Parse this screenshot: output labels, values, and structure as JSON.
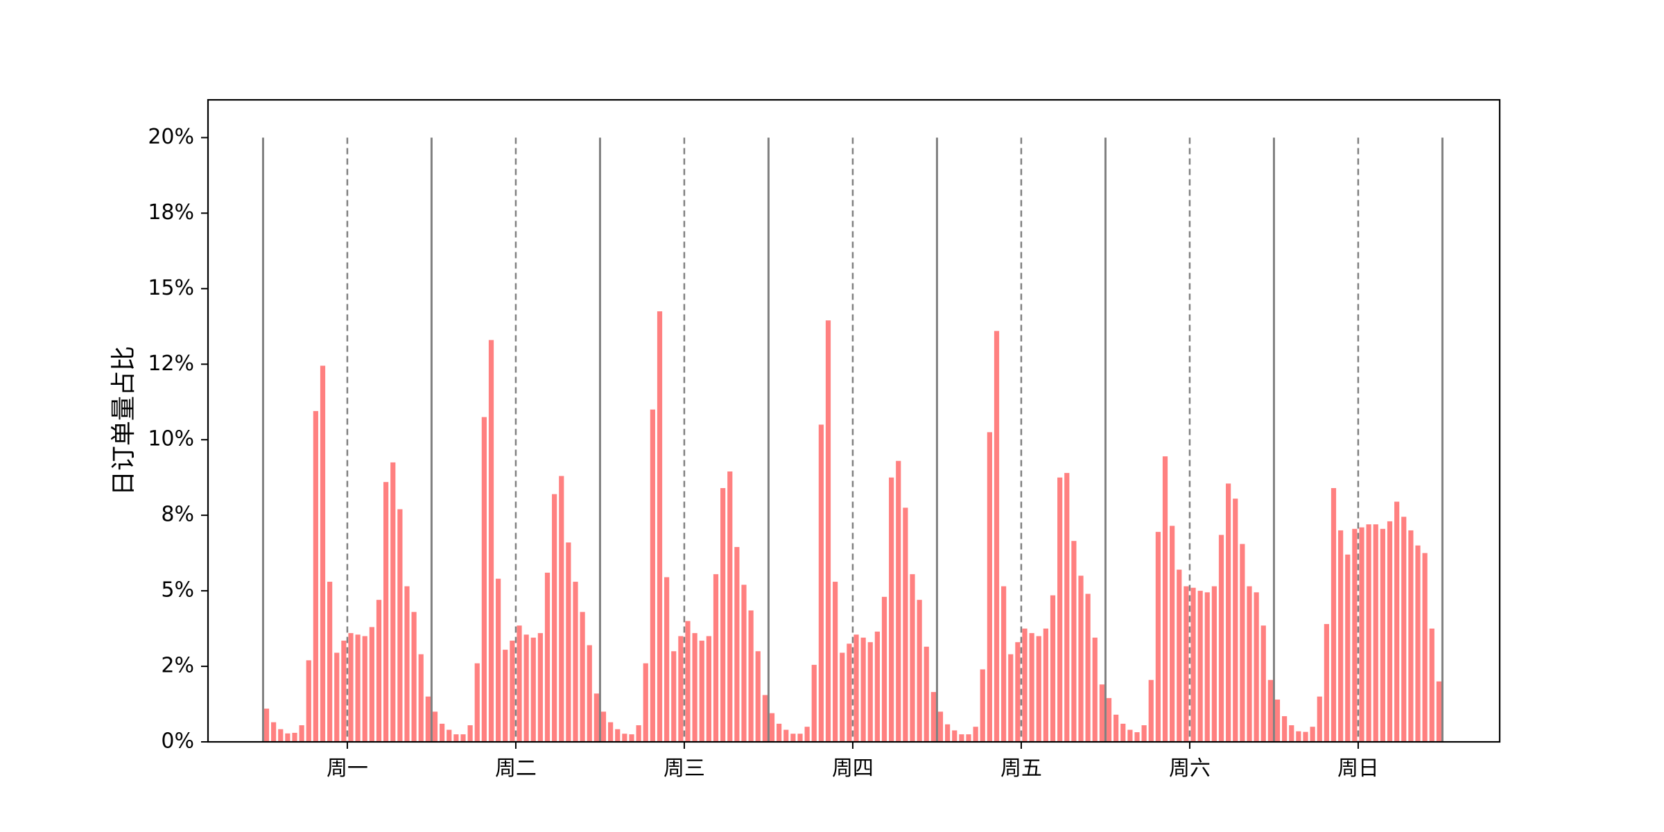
{
  "chart_data": {
    "type": "bar",
    "title": "",
    "xlabel": "",
    "ylabel": "日订单量占比",
    "ylim": [
      0,
      21.25
    ],
    "yticks": [
      0,
      2.5,
      5,
      7.5,
      10,
      12.5,
      15,
      17.5,
      20
    ],
    "ytick_labels": [
      "0%",
      "2%",
      "5%",
      "8%",
      "10%",
      "12%",
      "15%",
      "18%",
      "20%"
    ],
    "categories": [
      "周一",
      "周二",
      "周三",
      "周四",
      "周五",
      "周六",
      "周日"
    ],
    "hours_per_day": 24,
    "bar_color": "#ff8080",
    "divider_color": "#808080",
    "grid": false,
    "values": [
      [
        1.1,
        0.65,
        0.42,
        0.28,
        0.3,
        0.55,
        2.7,
        10.95,
        12.45,
        5.3,
        2.95,
        3.35,
        3.6,
        3.55,
        3.5,
        3.8,
        4.7,
        8.6,
        9.25,
        7.7,
        5.15,
        4.3,
        2.9,
        1.5
      ],
      [
        1.0,
        0.6,
        0.4,
        0.25,
        0.25,
        0.55,
        2.6,
        10.75,
        13.3,
        5.4,
        3.05,
        3.35,
        3.85,
        3.55,
        3.45,
        3.6,
        5.6,
        8.2,
        8.8,
        6.6,
        5.3,
        4.3,
        3.2,
        1.6
      ],
      [
        1.0,
        0.65,
        0.42,
        0.27,
        0.25,
        0.55,
        2.6,
        11.0,
        14.25,
        5.45,
        3.0,
        3.5,
        4.0,
        3.6,
        3.35,
        3.5,
        5.55,
        8.4,
        8.95,
        6.45,
        5.2,
        4.35,
        3.0,
        1.55
      ],
      [
        0.95,
        0.6,
        0.4,
        0.27,
        0.27,
        0.5,
        2.55,
        10.5,
        13.95,
        5.3,
        2.95,
        3.25,
        3.55,
        3.45,
        3.3,
        3.65,
        4.8,
        8.75,
        9.3,
        7.75,
        5.55,
        4.7,
        3.15,
        1.65
      ],
      [
        1.0,
        0.58,
        0.38,
        0.25,
        0.25,
        0.5,
        2.4,
        10.25,
        13.6,
        5.15,
        2.9,
        3.3,
        3.75,
        3.6,
        3.5,
        3.75,
        4.85,
        8.75,
        8.9,
        6.65,
        5.5,
        4.9,
        3.45,
        1.9
      ],
      [
        1.45,
        0.9,
        0.6,
        0.4,
        0.32,
        0.55,
        2.05,
        6.95,
        9.45,
        7.15,
        5.7,
        5.15,
        5.1,
        5.0,
        4.95,
        5.15,
        6.85,
        8.55,
        8.05,
        6.55,
        5.15,
        4.95,
        3.85,
        2.05
      ],
      [
        1.4,
        0.85,
        0.55,
        0.35,
        0.33,
        0.5,
        1.5,
        3.9,
        8.4,
        7.0,
        6.2,
        7.05,
        7.1,
        7.2,
        7.2,
        7.05,
        7.3,
        7.95,
        7.45,
        7.0,
        6.5,
        6.25,
        3.75,
        2.0
      ]
    ]
  }
}
